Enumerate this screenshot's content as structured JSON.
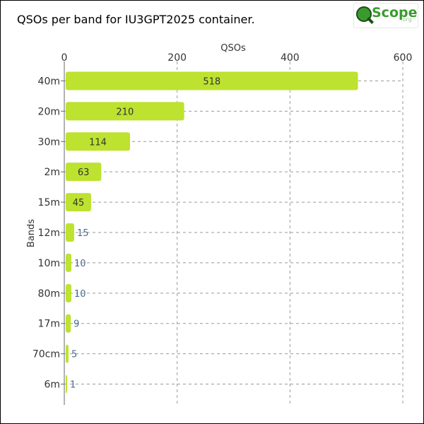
{
  "logo": {
    "word": "Scope",
    "tld": ".org"
  },
  "colors": {
    "bar": "#bde22f",
    "grid": "#999999",
    "label_inside": "#333333",
    "label_outside": "#4a6a8a"
  },
  "chart_data": {
    "type": "bar",
    "orientation": "horizontal",
    "title": "QSOs per band for IU3GPT2025 container.",
    "xlabel": "QSOs",
    "ylabel": "Bands",
    "xlim": [
      0,
      600
    ],
    "xticks": [
      0,
      200,
      400,
      600
    ],
    "x_axis_position": "top",
    "grid": true,
    "categories": [
      "40m",
      "20m",
      "30m",
      "2m",
      "15m",
      "12m",
      "10m",
      "80m",
      "17m",
      "70cm",
      "6m"
    ],
    "values": [
      518,
      210,
      114,
      63,
      45,
      15,
      10,
      10,
      9,
      5,
      1
    ]
  }
}
